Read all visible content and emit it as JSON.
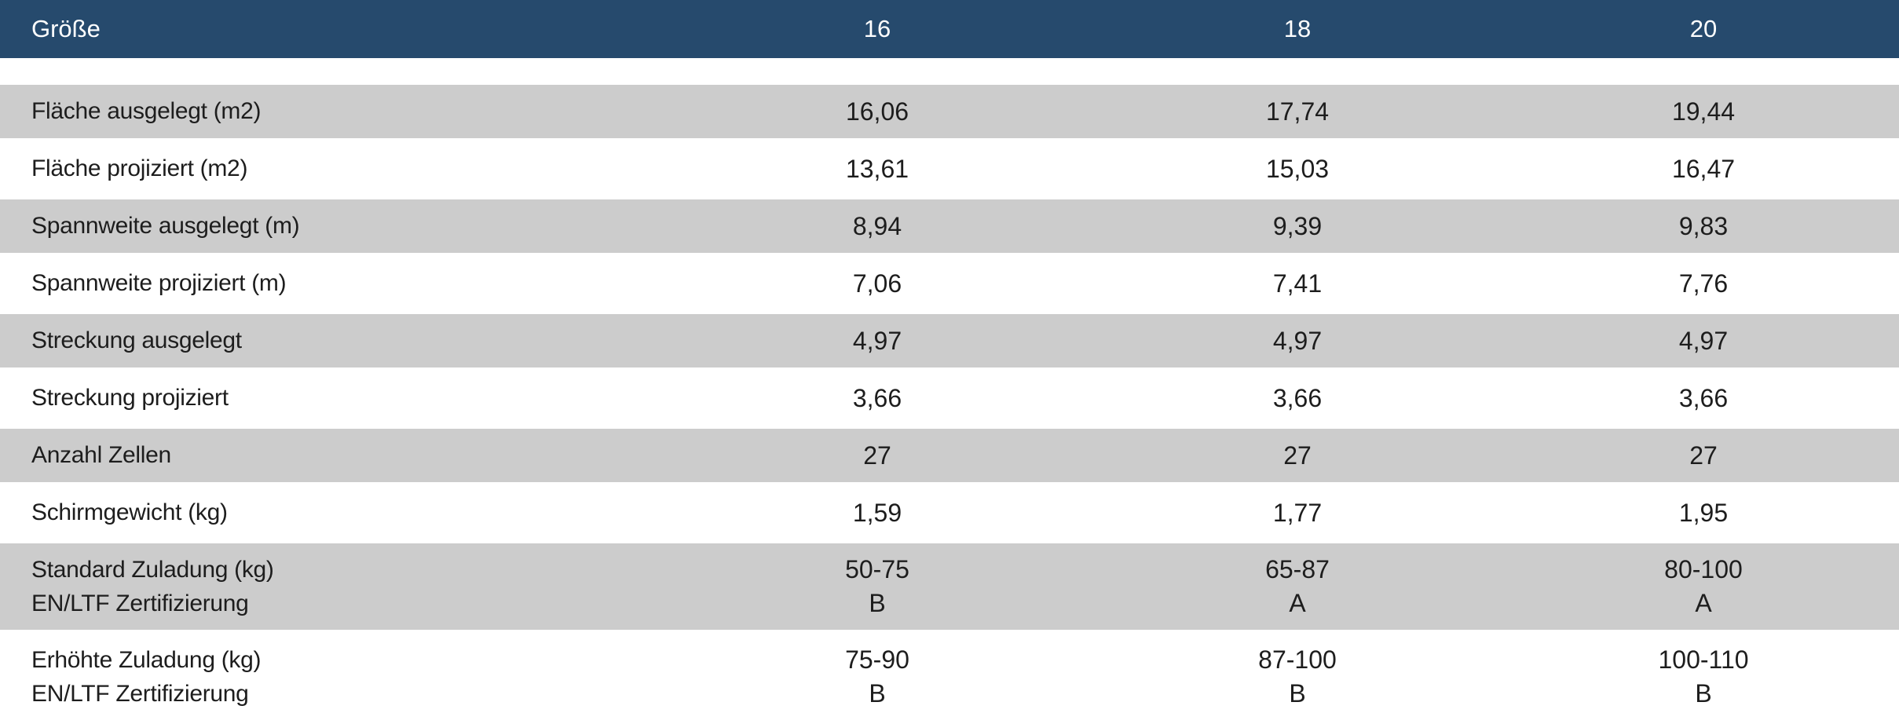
{
  "table": {
    "header": {
      "label": "Größe",
      "sizes": [
        "16",
        "18",
        "20"
      ]
    },
    "rows": [
      {
        "label": "Fläche ausgelegt (m2)",
        "values": [
          "16,06",
          "17,74",
          "19,44"
        ]
      },
      {
        "label": "Fläche projiziert (m2)",
        "values": [
          "13,61",
          "15,03",
          "16,47"
        ]
      },
      {
        "label": "Spannweite ausgelegt (m)",
        "values": [
          "8,94",
          "9,39",
          "9,83"
        ]
      },
      {
        "label": "Spannweite projiziert (m)",
        "values": [
          "7,06",
          "7,41",
          "7,76"
        ]
      },
      {
        "label": "Streckung ausgelegt",
        "values": [
          "4,97",
          "4,97",
          "4,97"
        ]
      },
      {
        "label": "Streckung projiziert",
        "values": [
          "3,66",
          "3,66",
          "3,66"
        ]
      },
      {
        "label": "Anzahl Zellen",
        "values": [
          "27",
          "27",
          "27"
        ]
      },
      {
        "label": "Schirmgewicht (kg)",
        "values": [
          "1,59",
          "1,77",
          "1,95"
        ]
      },
      {
        "label": "Standard Zuladung (kg)",
        "label2": "EN/LTF Zertifizierung",
        "values": [
          "50-75",
          "65-87",
          "80-100"
        ],
        "values2": [
          "B",
          "A",
          "A"
        ]
      },
      {
        "label": "Erhöhte Zuladung (kg)",
        "label2": "EN/LTF Zertifizierung",
        "values": [
          "75-90",
          "87-100",
          "100-110"
        ],
        "values2": [
          "B",
          "B",
          "B"
        ]
      }
    ],
    "colors": {
      "header_bg": "#264a6d",
      "header_text": "#ffffff",
      "stripe_row_bg": "#cccccc",
      "body_text": "#1d1d1d"
    }
  },
  "chart_data": {
    "type": "table",
    "title": "",
    "columns": [
      "Größe",
      "16",
      "18",
      "20"
    ],
    "rows": [
      [
        "Fläche ausgelegt (m2)",
        "16,06",
        "17,74",
        "19,44"
      ],
      [
        "Fläche projiziert (m2)",
        "13,61",
        "15,03",
        "16,47"
      ],
      [
        "Spannweite ausgelegt (m)",
        "8,94",
        "9,39",
        "9,83"
      ],
      [
        "Spannweite projiziert (m)",
        "7,06",
        "7,41",
        "7,76"
      ],
      [
        "Streckung ausgelegt",
        "4,97",
        "4,97",
        "4,97"
      ],
      [
        "Streckung projiziert",
        "3,66",
        "3,66",
        "3,66"
      ],
      [
        "Anzahl Zellen",
        "27",
        "27",
        "27"
      ],
      [
        "Schirmgewicht (kg)",
        "1,59",
        "1,77",
        "1,95"
      ],
      [
        "Standard Zuladung (kg) / EN/LTF Zertifizierung",
        "50-75 / B",
        "65-87 / A",
        "80-100 / A"
      ],
      [
        "Erhöhte Zuladung (kg) / EN/LTF Zertifizierung",
        "75-90 / B",
        "87-100 / B",
        "100-110 / B"
      ]
    ]
  }
}
